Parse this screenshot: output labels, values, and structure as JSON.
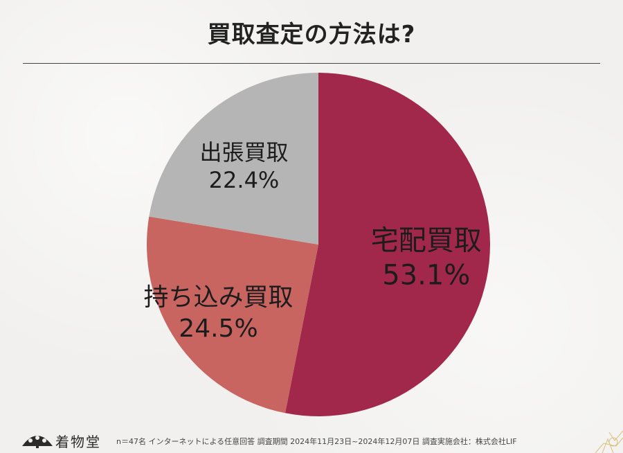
{
  "page": {
    "title": "買取査定の方法は?",
    "brand": "着物堂",
    "survey_note": "n＝47名 インターネットによる任意回答 調査期間 2024年11月23日~2024年12月07日 調査実施会社：株式会社LIF"
  },
  "icons": {
    "brand_logo": "fan-logo-icon",
    "corner": "floral-corner-icon"
  },
  "chart_data": {
    "type": "pie",
    "title": "買取査定の方法は?",
    "start": "12 o'clock",
    "direction": "clockwise",
    "slices": [
      {
        "label": "宅配買取",
        "value": 53.1,
        "value_label": "53.1%",
        "color": "#a2284b"
      },
      {
        "label": "持ち込み買取",
        "value": 24.5,
        "value_label": "24.5%",
        "color": "#c96560"
      },
      {
        "label": "出張買取",
        "value": 22.4,
        "value_label": "22.4%",
        "color": "#b5b5b5"
      }
    ]
  }
}
